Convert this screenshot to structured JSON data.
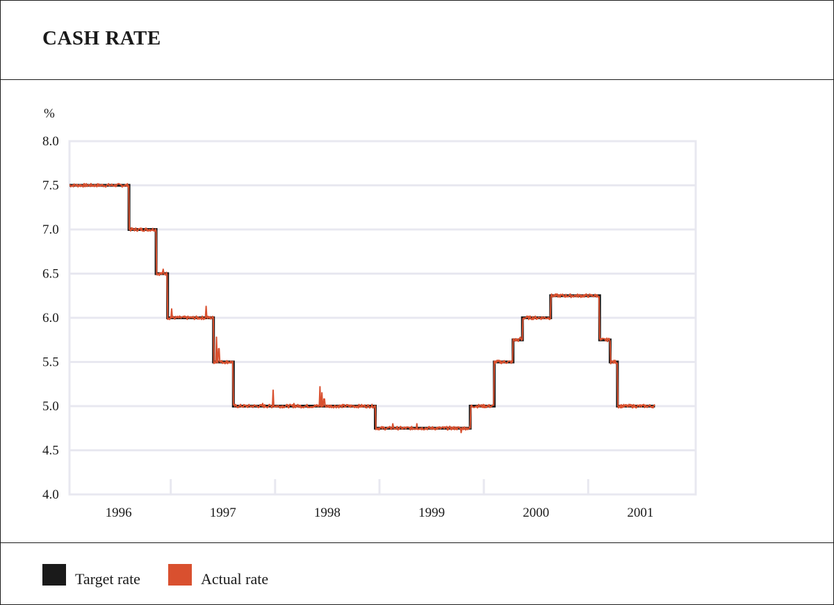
{
  "title": "CASH RATE",
  "colors": {
    "target": "#1a1a1a",
    "actual": "#d9502f",
    "grid": "#e8e8f0"
  },
  "chart_data": {
    "type": "line",
    "title": "CASH RATE",
    "ylabel": "%",
    "xlabel": "",
    "ylim": [
      4.0,
      8.0
    ],
    "xlim": [
      1995.9,
      2001.9
    ],
    "grid": true,
    "y_ticks": [
      "8.0",
      "7.5",
      "7.0",
      "6.5",
      "6.0",
      "5.5",
      "5.0",
      "4.5",
      "4.0"
    ],
    "x_tick_labels": [
      {
        "label": "1996",
        "year": 1996.37
      },
      {
        "label": "1997",
        "year": 1997.37
      },
      {
        "label": "1998",
        "year": 1998.37
      },
      {
        "label": "1999",
        "year": 1999.37
      },
      {
        "label": "2000",
        "year": 2000.37
      },
      {
        "label": "2001",
        "year": 2001.37
      }
    ],
    "year_boundaries": [
      1996.87,
      1997.87,
      1998.87,
      1999.87,
      2000.87
    ],
    "legend_position": "bottom-left",
    "series": [
      {
        "name": "Target rate",
        "kind": "step",
        "points": [
          [
            1995.9,
            7.5
          ],
          [
            1996.47,
            7.0
          ],
          [
            1996.73,
            6.5
          ],
          [
            1996.84,
            6.0
          ],
          [
            1997.28,
            5.5
          ],
          [
            1997.47,
            5.0
          ],
          [
            1998.83,
            4.75
          ],
          [
            1999.74,
            5.0
          ],
          [
            1999.97,
            5.5
          ],
          [
            2000.15,
            5.75
          ],
          [
            2000.24,
            6.0
          ],
          [
            2000.51,
            6.25
          ],
          [
            2000.98,
            5.75
          ],
          [
            2001.08,
            5.5
          ],
          [
            2001.15,
            5.0
          ],
          [
            2001.51,
            5.0
          ]
        ]
      },
      {
        "name": "Actual rate",
        "kind": "line",
        "noise_amplitude": 0.02,
        "spikes": [
          [
            1996.8,
            6.55
          ],
          [
            1996.88,
            6.1
          ],
          [
            1997.21,
            6.13
          ],
          [
            1997.31,
            5.78
          ],
          [
            1997.33,
            5.65
          ],
          [
            1997.75,
            5.03
          ],
          [
            1997.85,
            5.18
          ],
          [
            1998.05,
            5.03
          ],
          [
            1998.3,
            5.22
          ],
          [
            1998.32,
            5.15
          ],
          [
            1998.34,
            5.08
          ],
          [
            1999.0,
            4.8
          ],
          [
            1999.23,
            4.8
          ],
          [
            1999.65,
            4.7
          ],
          [
            2000.22,
            5.78
          ],
          [
            2001.06,
            5.75
          ]
        ]
      }
    ]
  },
  "legend": [
    {
      "label": "Target rate",
      "color": "#1a1a1a"
    },
    {
      "label": "Actual rate",
      "color": "#d9502f"
    }
  ]
}
